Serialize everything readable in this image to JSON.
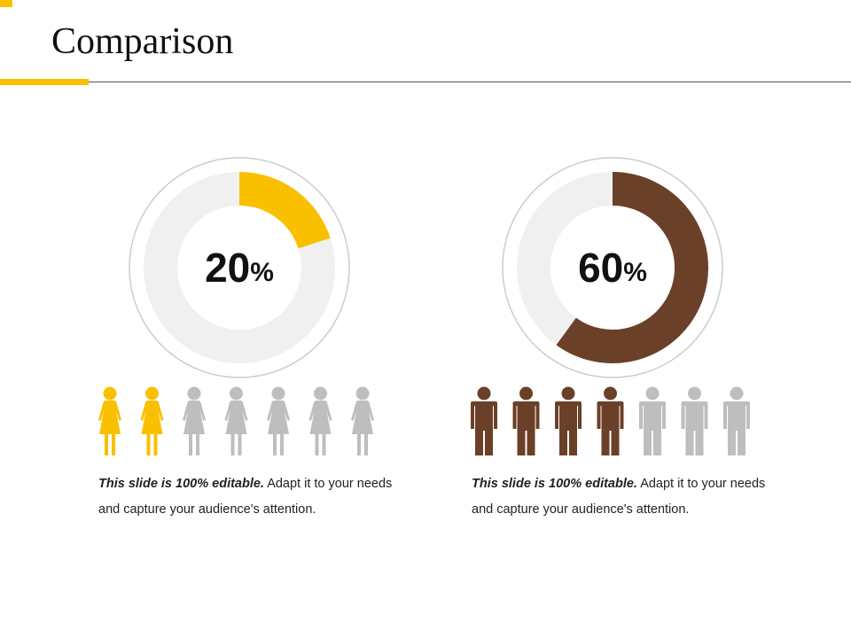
{
  "slide": {
    "title": "Comparison"
  },
  "colors": {
    "accent_yellow": "#F9C000",
    "accent_brown": "#6B4028",
    "donut_track": "#F0F0F0",
    "donut_ring": "#CCCCCC",
    "figure_inactive": "#BEBEBE"
  },
  "chart_data": [
    {
      "type": "pie",
      "values": [
        20,
        80
      ],
      "value_label": "20",
      "unit_label": "%",
      "pictogram": {
        "icon": "female-person-icon",
        "total": 7,
        "highlighted": 2
      },
      "caption": {
        "bold": "This slide is 100% editable.",
        "text": " Adapt it to your needs and capture your audience's attention."
      }
    },
    {
      "type": "pie",
      "values": [
        60,
        40
      ],
      "value_label": "60",
      "unit_label": "%",
      "pictogram": {
        "icon": "male-person-icon",
        "total": 7,
        "highlighted": 4
      },
      "caption": {
        "bold": "This slide is 100% editable.",
        "text": " Adapt it to your needs and capture your audience's attention."
      }
    }
  ]
}
